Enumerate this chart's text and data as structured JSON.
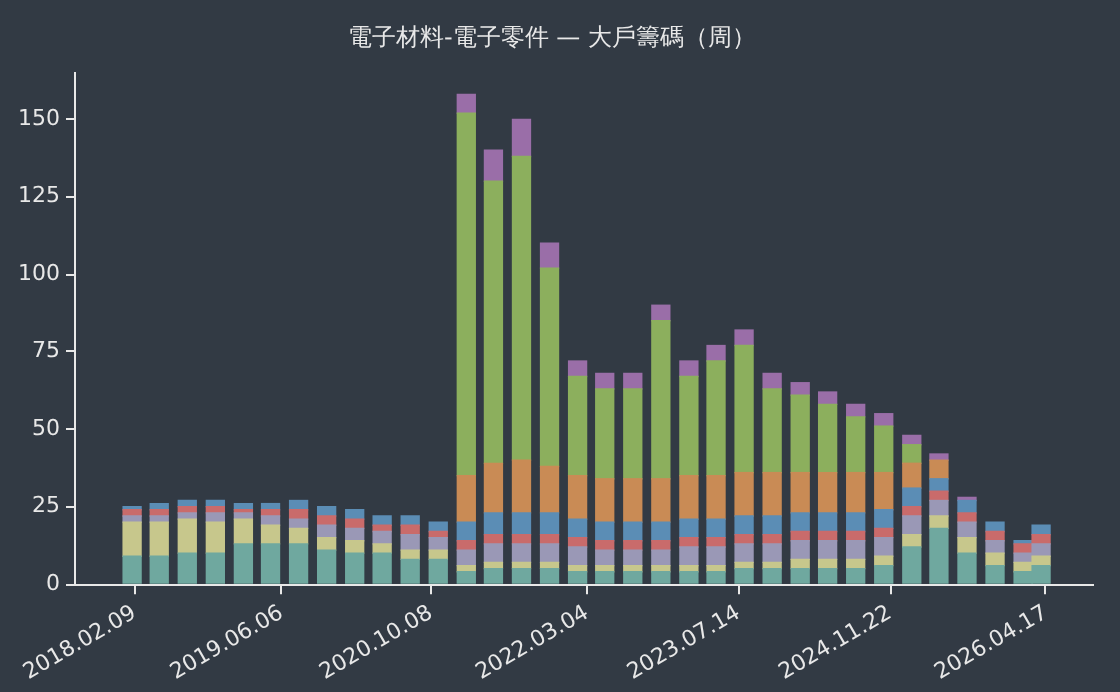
{
  "chart_data": {
    "type": "bar",
    "title": "電子材料-電子零件 — 大戶籌碼（周）",
    "stacked": true,
    "legend": false,
    "grid": false,
    "x": [
      "2018-02",
      "2018-05",
      "2018-08",
      "2018-11",
      "2019-02",
      "2019-05",
      "2019-08",
      "2019-11",
      "2020-02",
      "2020-05",
      "2020-08",
      "2020-11",
      "2021-02",
      "2021-05",
      "2021-08",
      "2021-11",
      "2022-02",
      "2022-05",
      "2022-08",
      "2022-11",
      "2023-02",
      "2023-05",
      "2023-08",
      "2023-11",
      "2024-02",
      "2024-05",
      "2024-08",
      "2024-11",
      "2025-02",
      "2025-05",
      "2025-08",
      "2025-11",
      "2026-02",
      "2026-04"
    ],
    "series": [
      {
        "color": "#6fa89f",
        "values": [
          9,
          9,
          10,
          10,
          13,
          13,
          13,
          11,
          10,
          10,
          8,
          8,
          4,
          5,
          5,
          5,
          4,
          4,
          4,
          4,
          4,
          4,
          5,
          5,
          5,
          5,
          5,
          6,
          12,
          18,
          10,
          6,
          4,
          6
        ]
      },
      {
        "color": "#c7c78c",
        "values": [
          11,
          11,
          11,
          10,
          8,
          6,
          5,
          4,
          4,
          3,
          3,
          3,
          2,
          2,
          2,
          2,
          2,
          2,
          2,
          2,
          2,
          2,
          2,
          2,
          3,
          3,
          3,
          3,
          4,
          4,
          5,
          4,
          3,
          3
        ]
      },
      {
        "color": "#9a98b6",
        "values": [
          2,
          2,
          2,
          3,
          2,
          3,
          3,
          4,
          4,
          4,
          5,
          4,
          5,
          6,
          6,
          6,
          6,
          5,
          5,
          5,
          6,
          6,
          6,
          6,
          6,
          6,
          6,
          6,
          6,
          5,
          5,
          4,
          3,
          4
        ]
      },
      {
        "color": "#c96b6b",
        "values": [
          2,
          2,
          2,
          2,
          1,
          2,
          3,
          3,
          3,
          2,
          3,
          2,
          3,
          3,
          3,
          3,
          3,
          3,
          3,
          3,
          3,
          3,
          3,
          3,
          3,
          3,
          3,
          3,
          3,
          3,
          3,
          3,
          3,
          3
        ]
      },
      {
        "color": "#5b8db5",
        "values": [
          1,
          2,
          2,
          2,
          2,
          2,
          3,
          3,
          3,
          3,
          3,
          3,
          6,
          7,
          7,
          7,
          6,
          6,
          6,
          6,
          6,
          6,
          6,
          6,
          6,
          6,
          6,
          6,
          6,
          4,
          4,
          3,
          1,
          3
        ]
      },
      {
        "color": "#c98b55",
        "values": [
          null,
          null,
          null,
          null,
          null,
          null,
          null,
          null,
          null,
          null,
          null,
          null,
          15,
          16,
          17,
          15,
          14,
          14,
          14,
          14,
          14,
          14,
          14,
          14,
          13,
          13,
          13,
          12,
          8,
          6,
          null,
          null,
          null,
          null
        ]
      },
      {
        "color": "#8caf5d",
        "values": [
          null,
          null,
          null,
          null,
          null,
          null,
          null,
          null,
          null,
          null,
          null,
          null,
          117,
          91,
          98,
          64,
          32,
          29,
          29,
          51,
          32,
          37,
          41,
          27,
          25,
          22,
          18,
          15,
          6,
          null,
          null,
          null,
          null,
          null
        ]
      },
      {
        "color": "#9a6ea8",
        "values": [
          null,
          null,
          null,
          null,
          null,
          null,
          null,
          null,
          null,
          null,
          null,
          null,
          6,
          10,
          12,
          8,
          5,
          5,
          5,
          5,
          5,
          5,
          5,
          5,
          4,
          4,
          4,
          4,
          3,
          2,
          1,
          null,
          null,
          null
        ]
      }
    ],
    "xlim": [
      "2017-08-01",
      "2026-09-15"
    ],
    "xticks": [
      {
        "value": "2018-02-09",
        "label": "2018.02.09"
      },
      {
        "value": "2019-06-06",
        "label": "2019.06.06"
      },
      {
        "value": "2020-10-08",
        "label": "2020.10.08"
      },
      {
        "value": "2022-03-04",
        "label": "2022.03.04"
      },
      {
        "value": "2023-07-14",
        "label": "2023.07.14"
      },
      {
        "value": "2024-11-22",
        "label": "2024.11.22"
      },
      {
        "value": "2026-04-17",
        "label": "2026.04.17"
      }
    ],
    "ylim": [
      0,
      165
    ],
    "yticks": [
      0,
      25,
      50,
      75,
      100,
      125,
      150
    ]
  }
}
